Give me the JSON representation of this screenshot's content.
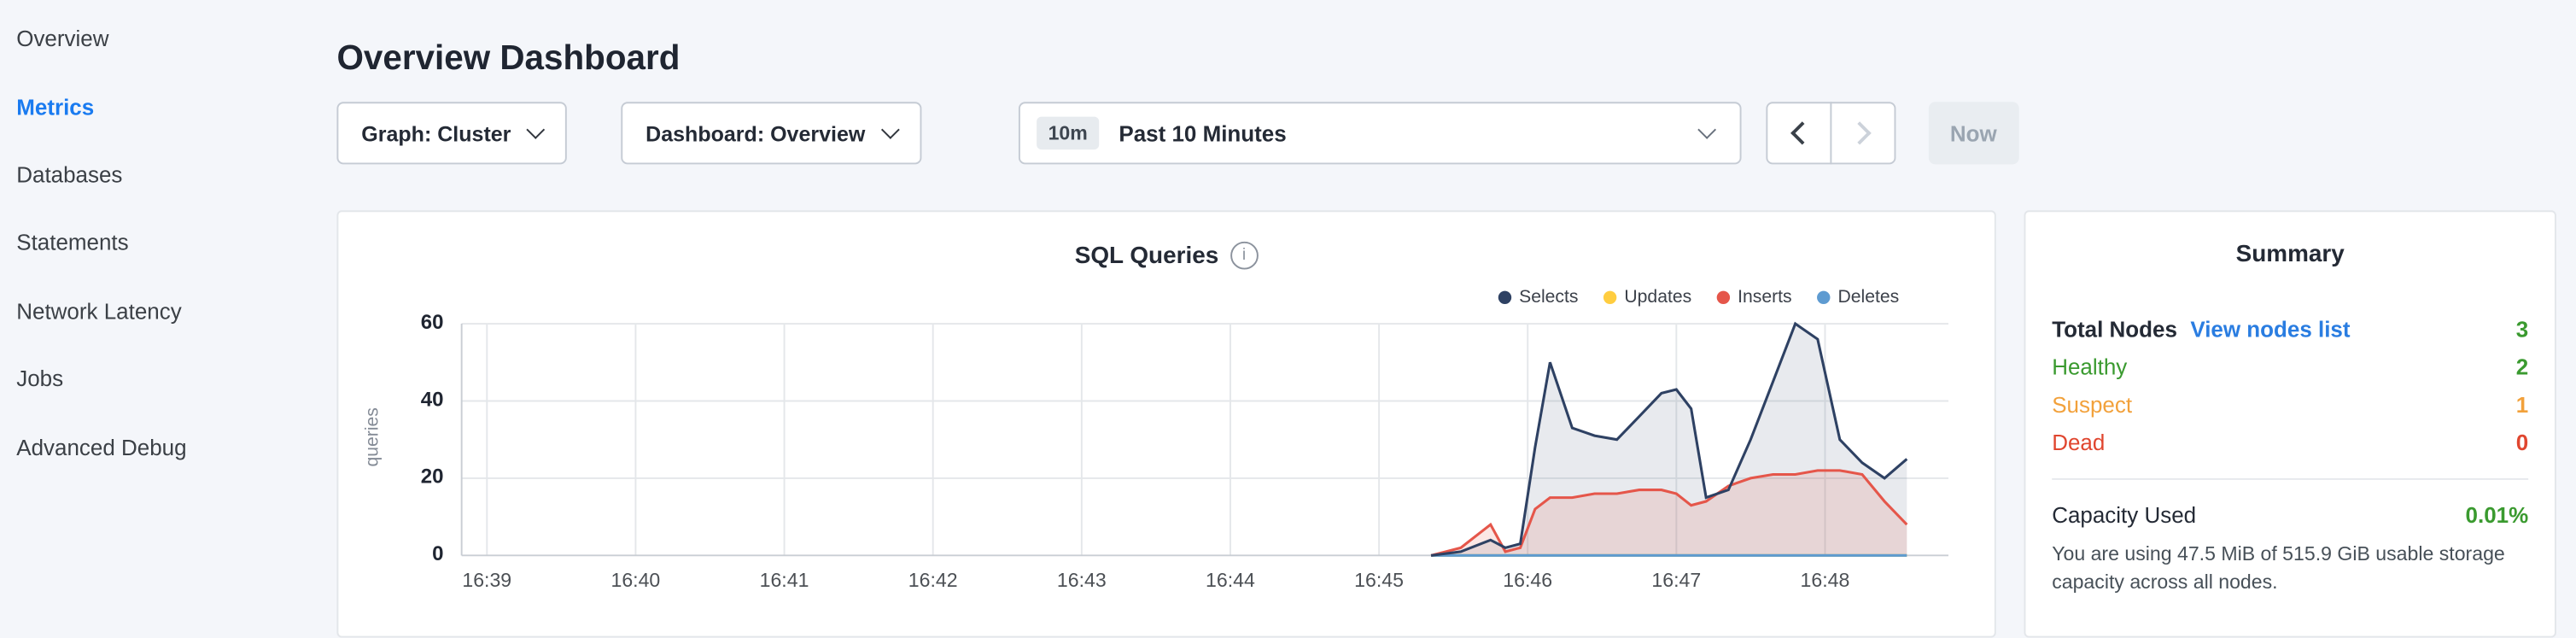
{
  "sidebar": {
    "items": [
      {
        "label": "Overview",
        "active": false
      },
      {
        "label": "Metrics",
        "active": true
      },
      {
        "label": "Databases",
        "active": false
      },
      {
        "label": "Statements",
        "active": false
      },
      {
        "label": "Network Latency",
        "active": false
      },
      {
        "label": "Jobs",
        "active": false
      },
      {
        "label": "Advanced Debug",
        "active": false
      }
    ]
  },
  "header": {
    "title": "Overview Dashboard"
  },
  "controls": {
    "graph_dropdown": {
      "label": "Graph: Cluster"
    },
    "dashboard_dropdown": {
      "label": "Dashboard: Overview"
    },
    "time": {
      "badge": "10m",
      "label": "Past 10 Minutes"
    },
    "now_label": "Now"
  },
  "chart_data": {
    "type": "area",
    "title": "SQL Queries",
    "ylabel": "queries",
    "x_format": "16:MM (minute shown as decimal minutes)",
    "xlim": [
      38.83,
      48.83
    ],
    "ylim": [
      0,
      60
    ],
    "grid": true,
    "legend_position": "top-right",
    "yticks": [
      0,
      20,
      40,
      60
    ],
    "xticks": [
      {
        "v": 39,
        "label": "16:39"
      },
      {
        "v": 40,
        "label": "16:40"
      },
      {
        "v": 41,
        "label": "16:41"
      },
      {
        "v": 42,
        "label": "16:42"
      },
      {
        "v": 43,
        "label": "16:43"
      },
      {
        "v": 44,
        "label": "16:44"
      },
      {
        "v": 45,
        "label": "16:45"
      },
      {
        "v": 46,
        "label": "16:46"
      },
      {
        "v": 47,
        "label": "16:47"
      },
      {
        "v": 48,
        "label": "16:48"
      }
    ],
    "x": [
      45.35,
      45.55,
      45.75,
      45.85,
      45.95,
      46.05,
      46.15,
      46.3,
      46.45,
      46.6,
      46.75,
      46.9,
      47.0,
      47.1,
      47.2,
      47.35,
      47.5,
      47.65,
      47.8,
      47.95,
      48.1,
      48.25,
      48.4,
      48.55
    ],
    "series": [
      {
        "name": "Selects",
        "color": "#2e4163",
        "fill": "rgba(80,95,125,0.13)",
        "values": [
          0,
          1,
          4,
          2,
          3,
          28,
          50,
          33,
          31,
          30,
          36,
          42,
          43,
          38,
          15,
          17,
          30,
          45,
          60,
          56,
          30,
          24,
          20,
          25
        ]
      },
      {
        "name": "Updates",
        "color": "#ffcd40",
        "fill": "none",
        "values": [
          0,
          0,
          0,
          0,
          0,
          0,
          0,
          0,
          0,
          0,
          0,
          0,
          0,
          0,
          0,
          0,
          0,
          0,
          0,
          0,
          0,
          0,
          0,
          0
        ]
      },
      {
        "name": "Inserts",
        "color": "#e5564a",
        "fill": "rgba(229,86,74,0.14)",
        "values": [
          0,
          2,
          8,
          1,
          2,
          12,
          15,
          15,
          16,
          16,
          17,
          17,
          16,
          13,
          14,
          18,
          20,
          21,
          21,
          22,
          22,
          21,
          14,
          8
        ]
      },
      {
        "name": "Deletes",
        "color": "#5e9bd1",
        "fill": "none",
        "values": [
          0,
          0,
          0,
          0,
          0,
          0,
          0,
          0,
          0,
          0,
          0,
          0,
          0,
          0,
          0,
          0,
          0,
          0,
          0,
          0,
          0,
          0,
          0,
          0
        ]
      }
    ]
  },
  "summary": {
    "title": "Summary",
    "rows": [
      {
        "label": "Total Nodes",
        "link": "View nodes list",
        "value": "3",
        "color": "green"
      },
      {
        "label": "Healthy",
        "value": "2",
        "color": "green"
      },
      {
        "label": "Suspect",
        "value": "1",
        "color": "orange"
      },
      {
        "label": "Dead",
        "value": "0",
        "color": "red"
      }
    ],
    "capacity_label": "Capacity Used",
    "capacity_value": "0.01%",
    "capacity_note": "You are using 47.5 MiB of 515.9 GiB usable storage capacity across all nodes."
  },
  "colors": {
    "link_blue": "#2a7de1",
    "active_nav": "#1a7bf0",
    "green": "#3a9a2f",
    "orange": "#f2a13b",
    "red": "#e0462f",
    "selects": "#2e4163",
    "updates": "#ffcd40",
    "inserts": "#e5564a",
    "deletes": "#5e9bd1"
  }
}
